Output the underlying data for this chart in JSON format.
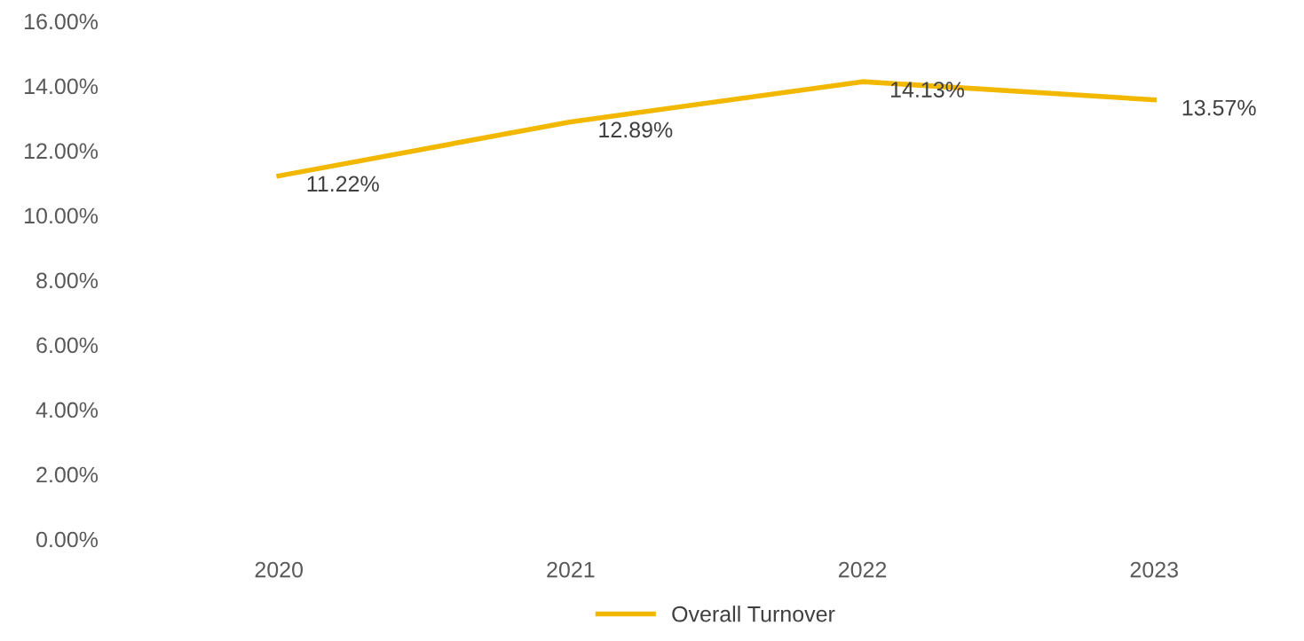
{
  "chart_data": {
    "type": "line",
    "categories": [
      "2020",
      "2021",
      "2022",
      "2023"
    ],
    "series": [
      {
        "name": "Overall Turnover",
        "color": "#f2b800",
        "values": [
          11.22,
          12.89,
          14.13,
          13.57
        ]
      }
    ],
    "value_labels": [
      "11.22%",
      "12.89%",
      "14.13%",
      "13.57%"
    ],
    "ylim": [
      0,
      16
    ],
    "yticks": [
      {
        "value": 0,
        "label": "0.00%"
      },
      {
        "value": 2,
        "label": "2.00%"
      },
      {
        "value": 4,
        "label": "4.00%"
      },
      {
        "value": 6,
        "label": "6.00%"
      },
      {
        "value": 8,
        "label": "8.00%"
      },
      {
        "value": 10,
        "label": "10.00%"
      },
      {
        "value": 12,
        "label": "12.00%"
      },
      {
        "value": 14,
        "label": "14.00%"
      },
      {
        "value": 16,
        "label": "16.00%"
      }
    ],
    "grid": false,
    "legend": "bottom",
    "marker": "none",
    "line_style": "solid"
  }
}
